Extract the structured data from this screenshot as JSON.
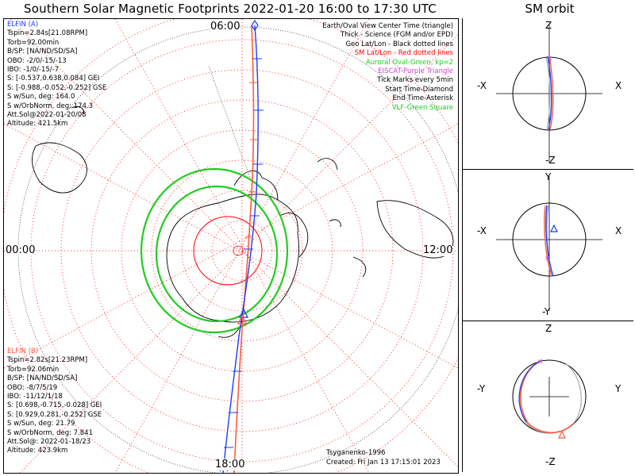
{
  "title": "Southern Solar Magnetic Footprints 2022-01-20 16:00 to 17:30 UTC",
  "orbit_title": "SM orbit",
  "lt_labels": {
    "top": "06:00",
    "left": "00:00",
    "right": "12:00",
    "bottom": "18:00"
  },
  "elfin_a": {
    "name": "ELFIN (A)",
    "color": "#1a3cff",
    "lines": [
      "Tspin=2.84s[21.08RPM]",
      "Torb=92.00min",
      "B/SP: [NA/ND/SD/SA]",
      "OBO: -2/0/-15/-13",
      "IBO: -1/0/-15/-7",
      "S: [-0.537,0.638,0.084] GEI",
      "S: [-0.988,-0.052,-0.252] GSE",
      "S w/Sun, deg: 164.0",
      "S w/OrbNorm, deg: 174.3",
      "Att.Sol@2022-01-20/08",
      "Altitude: 421.5km"
    ]
  },
  "elfin_b": {
    "name": "ELFIN (B)",
    "color": "#ff5a3c",
    "lines": [
      "Tspin=2.82s[21.23RPM]",
      "Torb=92.06min",
      "B/SP: [NA/ND/SD/SA]",
      "OBO: -8/7/5/19",
      "IBO: -11/12/1/18",
      "S: [0.698,-0.715,-0.028] GEI",
      "S: [0.929,0.281,-0.252] GSE",
      "S w/Sun, deg: 21.79",
      "S w/OrbNorm, deg: 7.841",
      "Att.Sol@: 2022-01-18/23",
      "Altitude: 423.9km"
    ]
  },
  "legend": [
    {
      "text": "Earth/Oval View Center Time (triangle)",
      "color": "#000000"
    },
    {
      "text": "Thick - Science (FGM and/or EPD)",
      "color": "#000000"
    },
    {
      "text": "Geo Lat/Lon - Black dotted lines",
      "color": "#000000"
    },
    {
      "text": "SM Lat/Lon - Red dotted lines",
      "color": "#ff0000"
    },
    {
      "text": "Auroral Oval-Green, kp=2",
      "color": "#22cc22"
    },
    {
      "text": "EISCAT-Purple Triangle",
      "color": "#cc44cc"
    },
    {
      "text": "Tick Marks every 5min",
      "color": "#000000"
    },
    {
      "text": "Start Time-Diamond",
      "color": "#000000"
    },
    {
      "text": "End Time-Asterisk",
      "color": "#000000"
    },
    {
      "text": "VLF-Green Square",
      "color": "#22cc22"
    }
  ],
  "footer": {
    "model": "Tsyganenko-1996",
    "created": "Created: Fri Jan 13 17:15:01 2023"
  },
  "orbit_panels": [
    {
      "top": "Z",
      "bottom": "-Z",
      "left": "-X",
      "right": "X"
    },
    {
      "top": "Y",
      "bottom": "-Y",
      "left": "-X",
      "right": "X"
    },
    {
      "top": "Z",
      "bottom": "-Z",
      "left": "-Y",
      "right": "Y"
    }
  ],
  "colors": {
    "sm_grid": "#ff0000",
    "geo_grid": "#000000",
    "oval": "#22cc22",
    "elfin_a": "#1a3cff",
    "elfin_b": "#ff5a3c"
  }
}
